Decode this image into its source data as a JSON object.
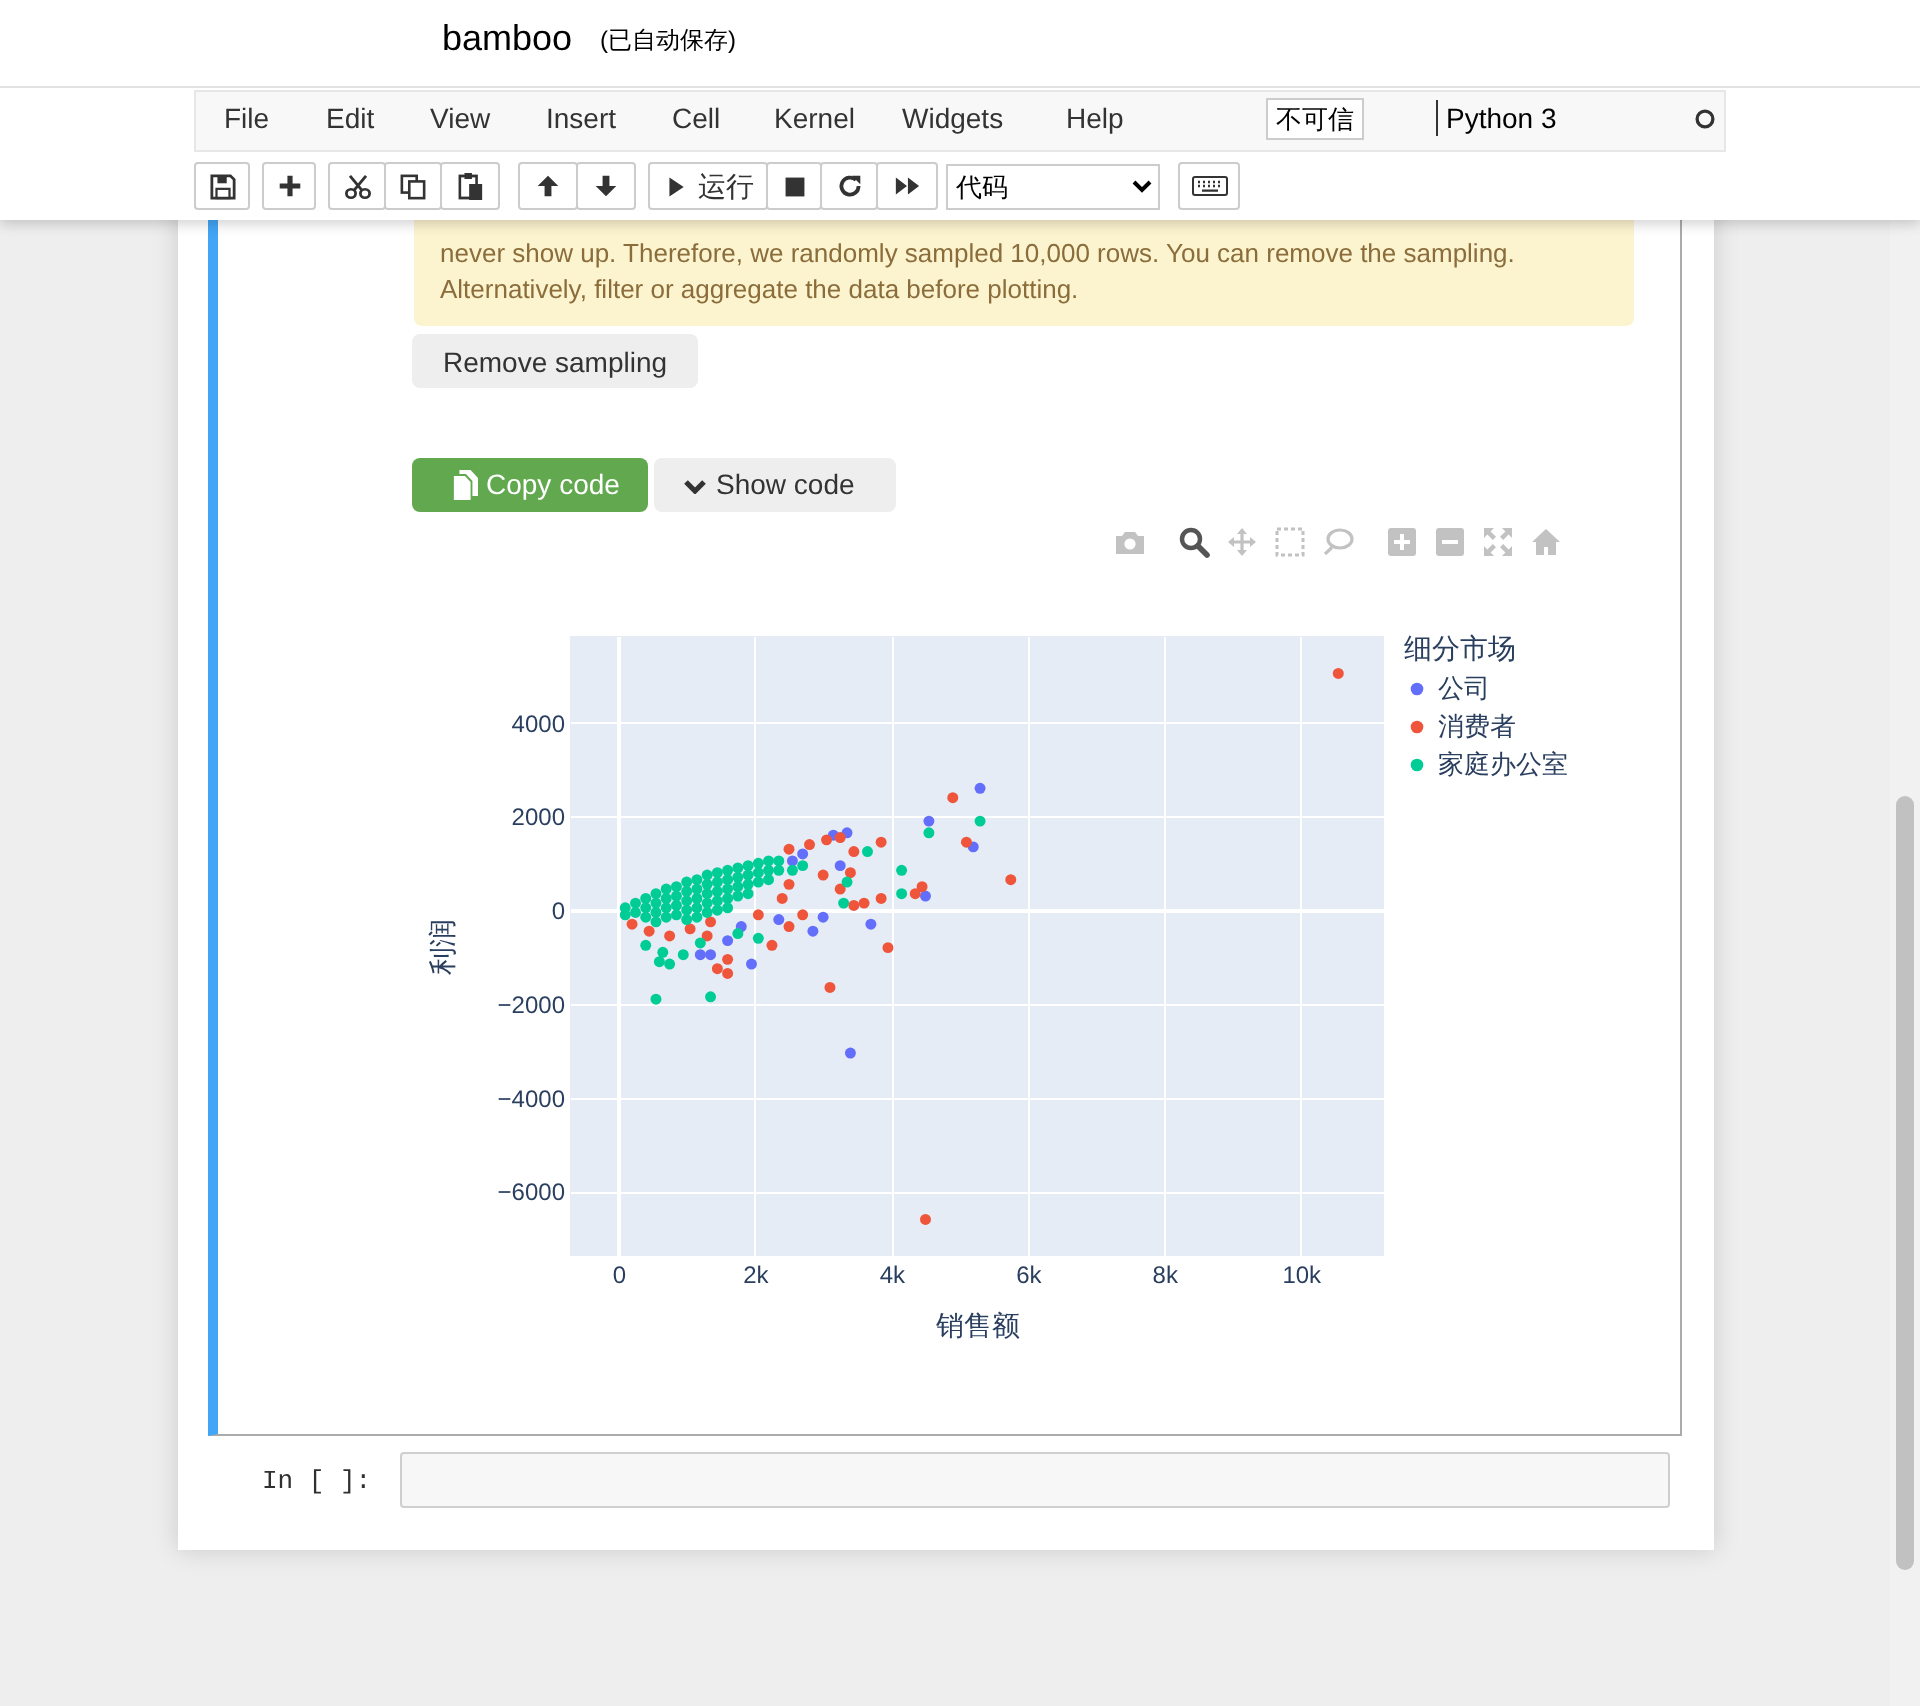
{
  "chart_data": {
    "type": "scatter",
    "xlabel": "销售额",
    "ylabel": "利润",
    "legend_title": "细分市场",
    "xlim": [
      -710,
      11220
    ],
    "ylim": [
      -7380,
      5850
    ],
    "xticks": [
      0,
      {
        "value": 2000,
        "label": "2k"
      },
      {
        "value": 4000,
        "label": "4k"
      },
      {
        "value": 6000,
        "label": "6k"
      },
      {
        "value": 8000,
        "label": "8k"
      },
      {
        "value": 10000,
        "label": "10k"
      }
    ],
    "yticks": [
      -6000,
      -4000,
      -2000,
      0,
      2000,
      4000
    ],
    "grid": true,
    "legend": "top right",
    "marker": "circle",
    "series": [
      {
        "name": "公司",
        "color": "#636efa",
        "x": [
          5300,
          4550,
          5200,
          4500,
          3400,
          3700,
          2850,
          3000,
          1950,
          1350,
          1200,
          3350,
          3150,
          3250,
          1800,
          1600,
          2550,
          2700,
          2350
        ],
        "values": [
          2600,
          1900,
          1350,
          300,
          -3050,
          -300,
          -450,
          -150,
          -1150,
          -950,
          -950,
          1650,
          1600,
          950,
          -350,
          -650,
          1050,
          1200,
          -200
        ]
      },
      {
        "name": "消费者",
        "color": "#ef553b",
        "x": [
          10550,
          4500,
          4900,
          5100,
          5750,
          3850,
          3950,
          3100,
          4450,
          4350,
          3850,
          3600,
          3450,
          3400,
          3250,
          3050,
          2800,
          2250,
          1600,
          1600,
          1450,
          3250,
          2500,
          2400,
          2700,
          2500,
          3000,
          3450,
          2500,
          200,
          450,
          750,
          1050,
          1300,
          1350,
          2050
        ],
        "values": [
          5050,
          -6600,
          2400,
          1450,
          650,
          1450,
          -800,
          -1650,
          500,
          350,
          250,
          150,
          1250,
          800,
          1550,
          1500,
          1400,
          -750,
          -1050,
          -1350,
          -1250,
          450,
          550,
          250,
          -100,
          -350,
          750,
          100,
          1300,
          -300,
          -450,
          -550,
          -400,
          -550,
          -250,
          -100
        ]
      },
      {
        "name": "家庭办公室",
        "color": "#00cc96",
        "x": [
          5300,
          4550,
          4150,
          4150,
          3650,
          3350,
          3300,
          2050,
          1350,
          550,
          750,
          600,
          1200,
          400,
          650,
          950,
          1750,
          100,
          100,
          250,
          250,
          400,
          400,
          400,
          550,
          550,
          550,
          550,
          700,
          700,
          700,
          700,
          850,
          850,
          850,
          850,
          1000,
          1000,
          1000,
          1000,
          1000,
          1150,
          1150,
          1150,
          1150,
          1150,
          1300,
          1300,
          1300,
          1300,
          1300,
          1450,
          1450,
          1450,
          1450,
          1450,
          1600,
          1600,
          1600,
          1600,
          1600,
          1750,
          1750,
          1750,
          1750,
          1900,
          1900,
          1900,
          1900,
          2050,
          2050,
          2050,
          2200,
          2200,
          2200,
          2350,
          2350,
          2550,
          2700
        ],
        "values": [
          1900,
          1650,
          850,
          350,
          1250,
          600,
          150,
          -600,
          -1850,
          -1900,
          -1150,
          -1100,
          -700,
          -750,
          -900,
          -950,
          -500,
          50,
          -100,
          150,
          -50,
          250,
          50,
          -150,
          350,
          150,
          -50,
          -250,
          450,
          250,
          50,
          -150,
          500,
          300,
          100,
          -100,
          600,
          400,
          200,
          0,
          -200,
          650,
          450,
          250,
          50,
          -150,
          750,
          550,
          350,
          150,
          -50,
          800,
          600,
          400,
          200,
          0,
          850,
          650,
          450,
          250,
          50,
          900,
          700,
          500,
          300,
          950,
          750,
          550,
          350,
          1000,
          800,
          600,
          1050,
          850,
          650,
          1050,
          850,
          850,
          950
        ]
      }
    ],
    "annotations": [
      "bamboo",
      "(已自动保存)",
      "File",
      "Edit",
      "View",
      "Insert",
      "Cell",
      "Kernel",
      "Widgets",
      "Help",
      "不可信",
      "Python 3",
      "运行",
      "代码",
      "never show up. Therefore, we randomly sampled 10,000 rows. You can remove the sampling.",
      "Alternatively, filter or aggregate the data before plotting.",
      "Remove sampling",
      "Copy code",
      "Show code",
      "In [ ]:"
    ]
  }
}
